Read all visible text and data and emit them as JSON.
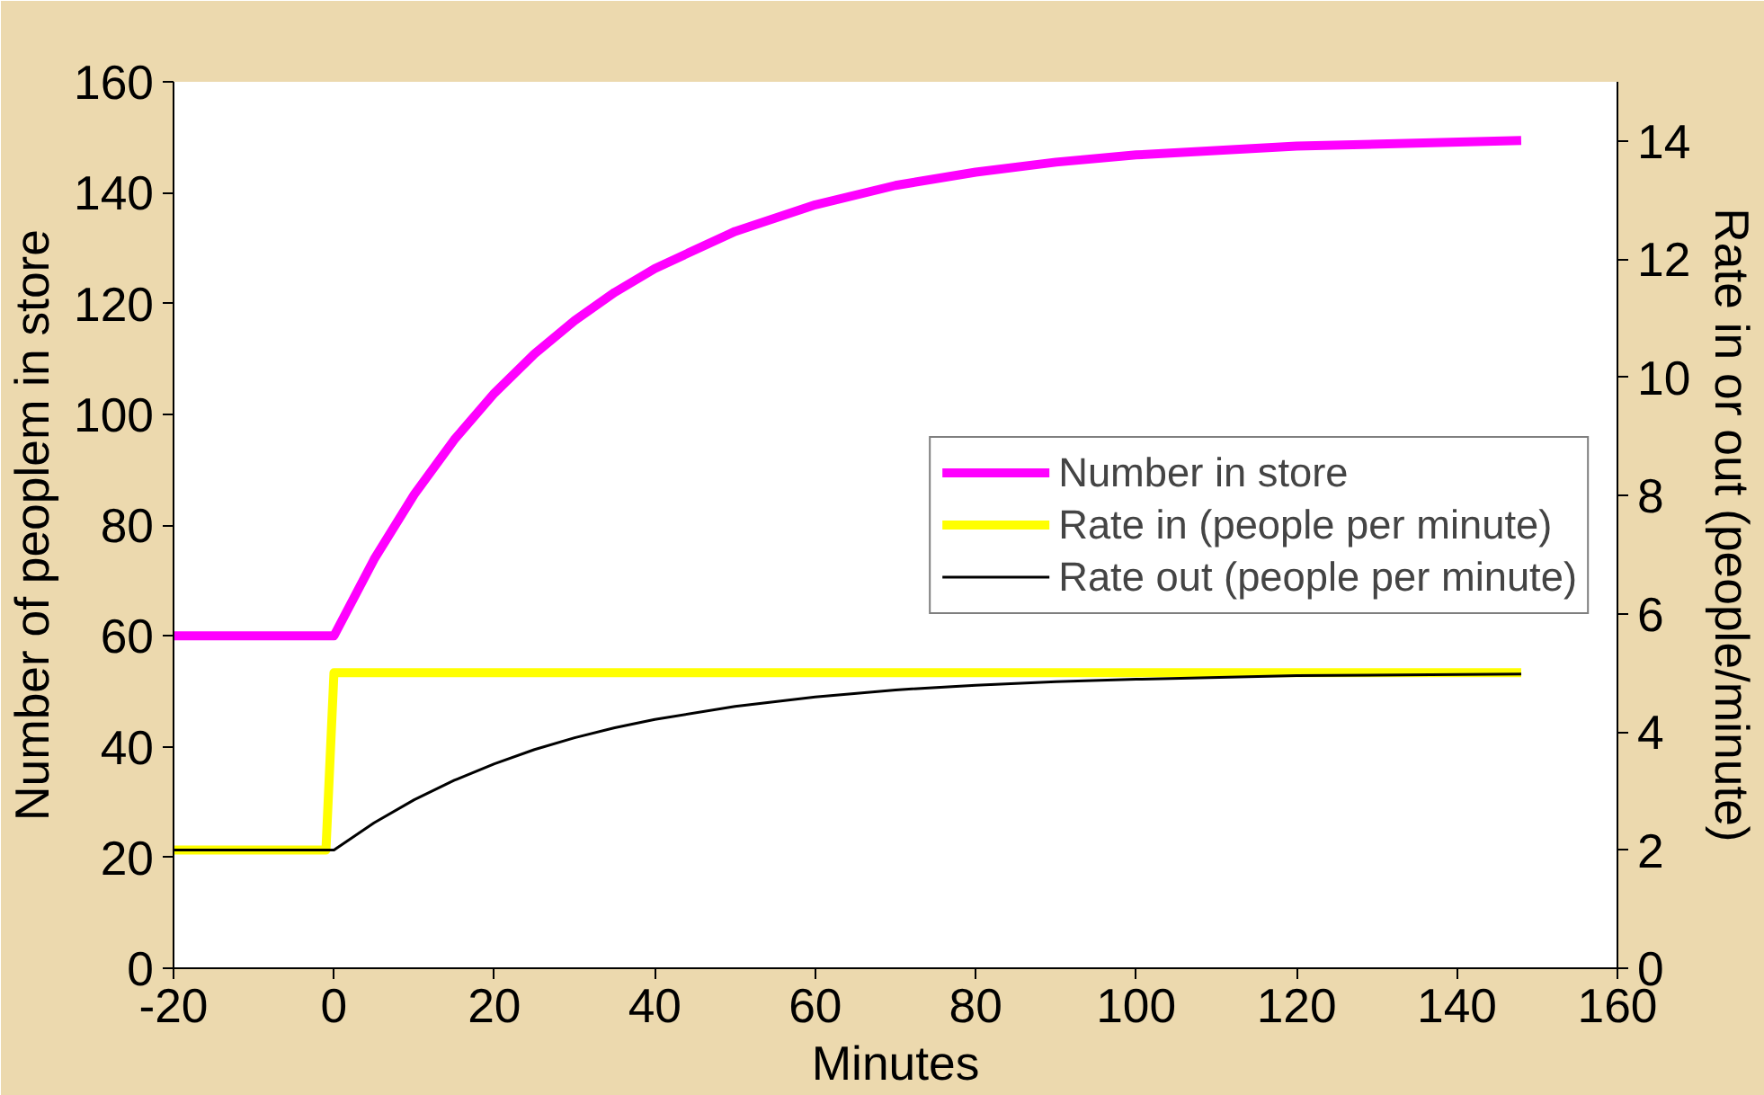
{
  "chart_data": {
    "type": "line",
    "xlabel": "Minutes",
    "ylabel": "Number of peoplem in store",
    "y2label": "Rate in or out (people/minute)",
    "xlim": [
      -20,
      160
    ],
    "xticks": [
      {
        "value": -20,
        "label": "-20"
      },
      0,
      20,
      40,
      60,
      80,
      100,
      120,
      140,
      160
    ],
    "ylim": [
      0,
      160
    ],
    "yticks": [
      0,
      20,
      40,
      60,
      80,
      100,
      120,
      140,
      160
    ],
    "y2lim": [
      0,
      15
    ],
    "y2ticks": [
      0,
      2,
      4,
      6,
      8,
      10,
      12,
      14
    ],
    "grid": false,
    "legend": "right",
    "series": [
      {
        "name": "Number in store",
        "color": "#ff00ff",
        "x": [
          -20,
          0,
          5,
          10,
          15,
          20,
          25,
          30,
          35,
          40,
          50,
          60,
          70,
          80,
          90,
          100,
          120,
          148
        ],
        "values": [
          60,
          60,
          73.8,
          85.5,
          95.4,
          103.8,
          110.9,
          116.9,
          122.0,
          126.3,
          133.0,
          137.8,
          141.3,
          143.7,
          145.5,
          146.8,
          148.4,
          149.4
        ]
      },
      {
        "name": "Rate in (people per minute)",
        "color": "#ffff00",
        "axis": "y2",
        "x": [
          -20,
          -1,
          0,
          148
        ],
        "values": [
          2,
          2,
          5,
          5
        ]
      },
      {
        "name": "Rate out (people per minute)",
        "color": "#000000",
        "axis": "y2",
        "x": [
          -20,
          0,
          5,
          10,
          15,
          20,
          25,
          30,
          35,
          40,
          50,
          60,
          70,
          80,
          90,
          100,
          120,
          148
        ],
        "values": [
          2.0,
          2.0,
          2.46,
          2.85,
          3.18,
          3.46,
          3.7,
          3.9,
          4.07,
          4.21,
          4.43,
          4.59,
          4.71,
          4.79,
          4.85,
          4.89,
          4.95,
          4.98
        ]
      }
    ]
  }
}
